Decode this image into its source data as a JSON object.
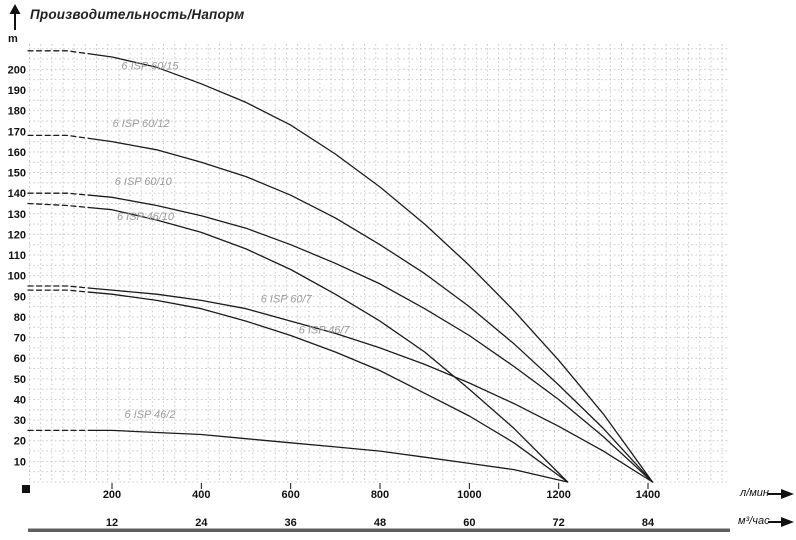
{
  "header": {
    "title": "Производительность/Напорм"
  },
  "colors": {
    "curve": "#1c1c1c",
    "grid": "#c9c9c9",
    "series_label": "#9b9b9b",
    "text": "#111111",
    "bottom_bar": "#5f5f5f"
  },
  "chart_data": {
    "type": "line",
    "title": "Производительность/Напорм",
    "ylabel": "m",
    "grid": "dotted",
    "legend_position": "inline-labels",
    "y_axis": {
      "unit": "m",
      "ticks": [
        10,
        20,
        30,
        40,
        50,
        60,
        70,
        80,
        90,
        100,
        110,
        120,
        130,
        140,
        150,
        160,
        170,
        180,
        190,
        200
      ],
      "range": [
        0,
        213
      ]
    },
    "x_axis_primary": {
      "unit": "л/мин",
      "ticks": [
        200,
        400,
        600,
        800,
        1000,
        1200,
        1400
      ],
      "range": [
        0,
        1580
      ]
    },
    "x_axis_secondary": {
      "unit": "м³/час",
      "ticks": [
        12,
        24,
        36,
        48,
        60,
        72,
        84
      ]
    },
    "series": [
      {
        "name": "6 ISP 60/15",
        "label_at": [
          285,
          200
        ],
        "points": [
          [
            12,
            209
          ],
          [
            100,
            209
          ],
          [
            200,
            206
          ],
          [
            300,
            201
          ],
          [
            400,
            193
          ],
          [
            500,
            184
          ],
          [
            600,
            173
          ],
          [
            700,
            159
          ],
          [
            800,
            143
          ],
          [
            900,
            125
          ],
          [
            1000,
            105
          ],
          [
            1100,
            83
          ],
          [
            1200,
            59
          ],
          [
            1300,
            33
          ],
          [
            1410,
            0
          ]
        ]
      },
      {
        "name": "6 ISP 60/12",
        "label_at": [
          265,
          172
        ],
        "points": [
          [
            12,
            168
          ],
          [
            100,
            168
          ],
          [
            200,
            165
          ],
          [
            300,
            161
          ],
          [
            400,
            155
          ],
          [
            500,
            148
          ],
          [
            600,
            139
          ],
          [
            700,
            128
          ],
          [
            800,
            115
          ],
          [
            900,
            101
          ],
          [
            1000,
            85
          ],
          [
            1100,
            67
          ],
          [
            1200,
            47
          ],
          [
            1300,
            26
          ],
          [
            1410,
            0
          ]
        ]
      },
      {
        "name": "6 ISP 60/10",
        "label_at": [
          270,
          144
        ],
        "points": [
          [
            12,
            140
          ],
          [
            100,
            140
          ],
          [
            200,
            138
          ],
          [
            300,
            134
          ],
          [
            400,
            129
          ],
          [
            500,
            123
          ],
          [
            600,
            115
          ],
          [
            700,
            106
          ],
          [
            800,
            96
          ],
          [
            900,
            84
          ],
          [
            1000,
            71
          ],
          [
            1100,
            56
          ],
          [
            1200,
            40
          ],
          [
            1300,
            22
          ],
          [
            1410,
            0
          ]
        ]
      },
      {
        "name": "6 ISP 46/10",
        "label_at": [
          275,
          127
        ],
        "points": [
          [
            12,
            135
          ],
          [
            100,
            134
          ],
          [
            200,
            132
          ],
          [
            300,
            127
          ],
          [
            400,
            121
          ],
          [
            500,
            113
          ],
          [
            600,
            103
          ],
          [
            700,
            91
          ],
          [
            800,
            78
          ],
          [
            900,
            63
          ],
          [
            1000,
            45
          ],
          [
            1100,
            26
          ],
          [
            1220,
            0
          ]
        ]
      },
      {
        "name": "6 ISP 60/7",
        "label_at": [
          590,
          87
        ],
        "points": [
          [
            12,
            95
          ],
          [
            100,
            95
          ],
          [
            200,
            93
          ],
          [
            300,
            91
          ],
          [
            400,
            88
          ],
          [
            500,
            84
          ],
          [
            600,
            78
          ],
          [
            700,
            72
          ],
          [
            800,
            65
          ],
          [
            900,
            57
          ],
          [
            1000,
            48
          ],
          [
            1100,
            38
          ],
          [
            1200,
            27
          ],
          [
            1300,
            15
          ],
          [
            1410,
            0
          ]
        ]
      },
      {
        "name": "6 ISP 46/7",
        "label_at": [
          675,
          72
        ],
        "points": [
          [
            12,
            93
          ],
          [
            100,
            93
          ],
          [
            200,
            91
          ],
          [
            300,
            88
          ],
          [
            400,
            84
          ],
          [
            500,
            78
          ],
          [
            600,
            71
          ],
          [
            700,
            63
          ],
          [
            800,
            54
          ],
          [
            900,
            43
          ],
          [
            1000,
            32
          ],
          [
            1100,
            19
          ],
          [
            1220,
            0
          ]
        ]
      },
      {
        "name": "6 ISP 46/2",
        "label_at": [
          285,
          31
        ],
        "points": [
          [
            12,
            25
          ],
          [
            100,
            25
          ],
          [
            200,
            25
          ],
          [
            300,
            24
          ],
          [
            400,
            23
          ],
          [
            500,
            21
          ],
          [
            600,
            19
          ],
          [
            700,
            17
          ],
          [
            800,
            15
          ],
          [
            900,
            12
          ],
          [
            1000,
            9
          ],
          [
            1100,
            6
          ],
          [
            1220,
            0
          ]
        ]
      }
    ]
  }
}
